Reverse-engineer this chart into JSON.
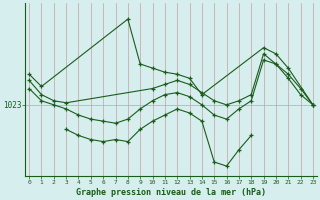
{
  "title": "Graphe pression niveau de la mer (hPa)",
  "ylabel_value": 1023,
  "bg_color": "#d6eeee",
  "grid_color": "#c0a8a8",
  "line_color": "#1a5c1a",
  "x_ticks": [
    0,
    1,
    2,
    3,
    4,
    5,
    6,
    7,
    8,
    9,
    10,
    11,
    12,
    13,
    14,
    15,
    16,
    17,
    18,
    19,
    20,
    21,
    22,
    23
  ],
  "series": [
    [
      1024.5,
      1023.8,
      null,
      null,
      null,
      null,
      null,
      null,
      1027.2,
      1025.0,
      1024.8,
      1024.6,
      1024.5,
      1024.3,
      1023.5,
      null,
      null,
      null,
      null,
      1025.8,
      1025.5,
      1024.8,
      null,
      1023.0
    ],
    [
      1024.2,
      1023.5,
      1023.2,
      1023.1,
      null,
      null,
      null,
      null,
      null,
      null,
      1023.8,
      1024.0,
      1024.2,
      1024.0,
      1023.6,
      1023.2,
      1023.0,
      1023.2,
      1023.5,
      1025.5,
      1025.0,
      1024.5,
      1023.8,
      1023.0
    ],
    [
      1023.8,
      1023.2,
      1023.0,
      1022.8,
      1022.5,
      1022.3,
      1022.2,
      1022.1,
      1022.3,
      1022.8,
      1023.2,
      1023.5,
      1023.6,
      1023.4,
      1023.0,
      1022.5,
      1022.3,
      1022.8,
      1023.2,
      1025.2,
      1025.0,
      1024.3,
      1023.5,
      1023.0
    ],
    [
      null,
      null,
      null,
      1021.8,
      1021.5,
      1021.3,
      1021.2,
      1021.3,
      1021.2,
      1021.8,
      1022.2,
      1022.5,
      1022.8,
      1022.6,
      1022.2,
      1020.2,
      1020.0,
      1020.8,
      1021.5,
      null,
      null,
      null,
      null,
      null
    ]
  ],
  "ylim_min": 1019.5,
  "ylim_max": 1028.0,
  "xlim_min": -0.3,
  "xlim_max": 23.3,
  "figsize": [
    3.2,
    2.0
  ],
  "dpi": 100
}
